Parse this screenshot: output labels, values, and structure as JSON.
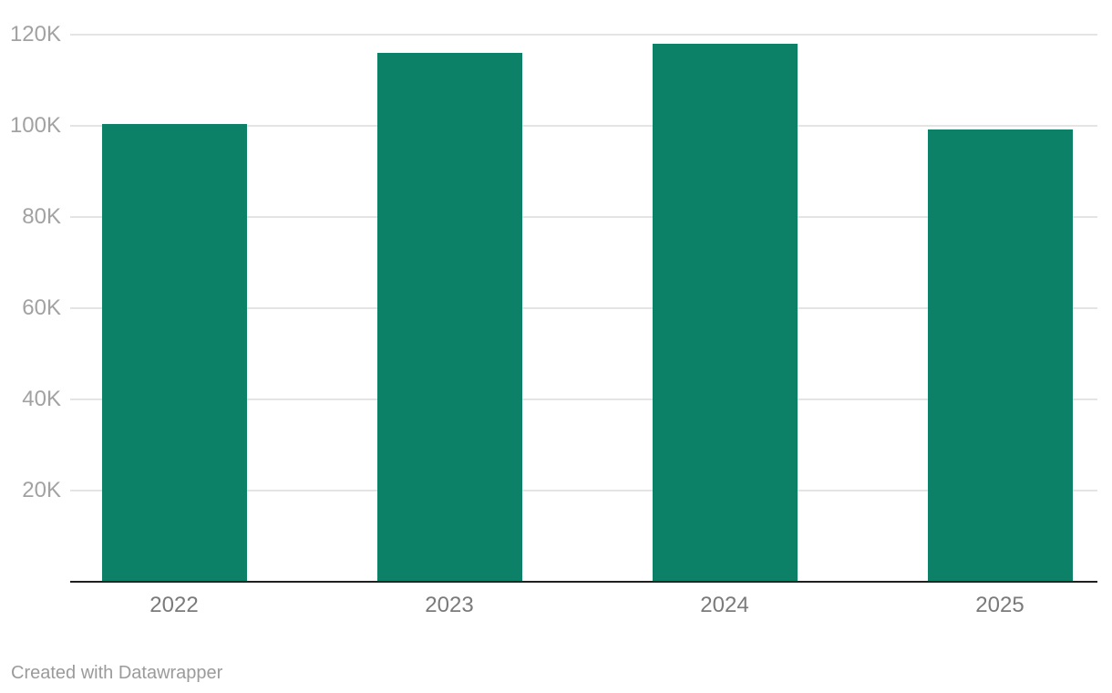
{
  "chart_data": {
    "type": "bar",
    "categories": [
      "2022",
      "2023",
      "2024",
      "2025"
    ],
    "values": [
      100400,
      116000,
      118000,
      99300
    ],
    "title": "",
    "xlabel": "",
    "ylabel": "",
    "ylim": [
      0,
      120000
    ],
    "yticks": [
      {
        "value": 20000,
        "label": "20K"
      },
      {
        "value": 40000,
        "label": "40K"
      },
      {
        "value": 60000,
        "label": "60K"
      },
      {
        "value": 80000,
        "label": "80K"
      },
      {
        "value": 100000,
        "label": "100K"
      },
      {
        "value": 120000,
        "label": "120K"
      }
    ],
    "grid": true,
    "legend": "none",
    "bar_color": "#0c8168"
  },
  "colors": {
    "bar": "#0c8168",
    "gridline": "#e4e4e4",
    "axis_line": "#1f1f1f",
    "y_tick_text": "#a2a2a2",
    "x_tick_text": "#7a7a7a",
    "attribution_text": "#9b9b9b",
    "background": "#ffffff"
  },
  "attribution": {
    "text": "Created with Datawrapper"
  }
}
